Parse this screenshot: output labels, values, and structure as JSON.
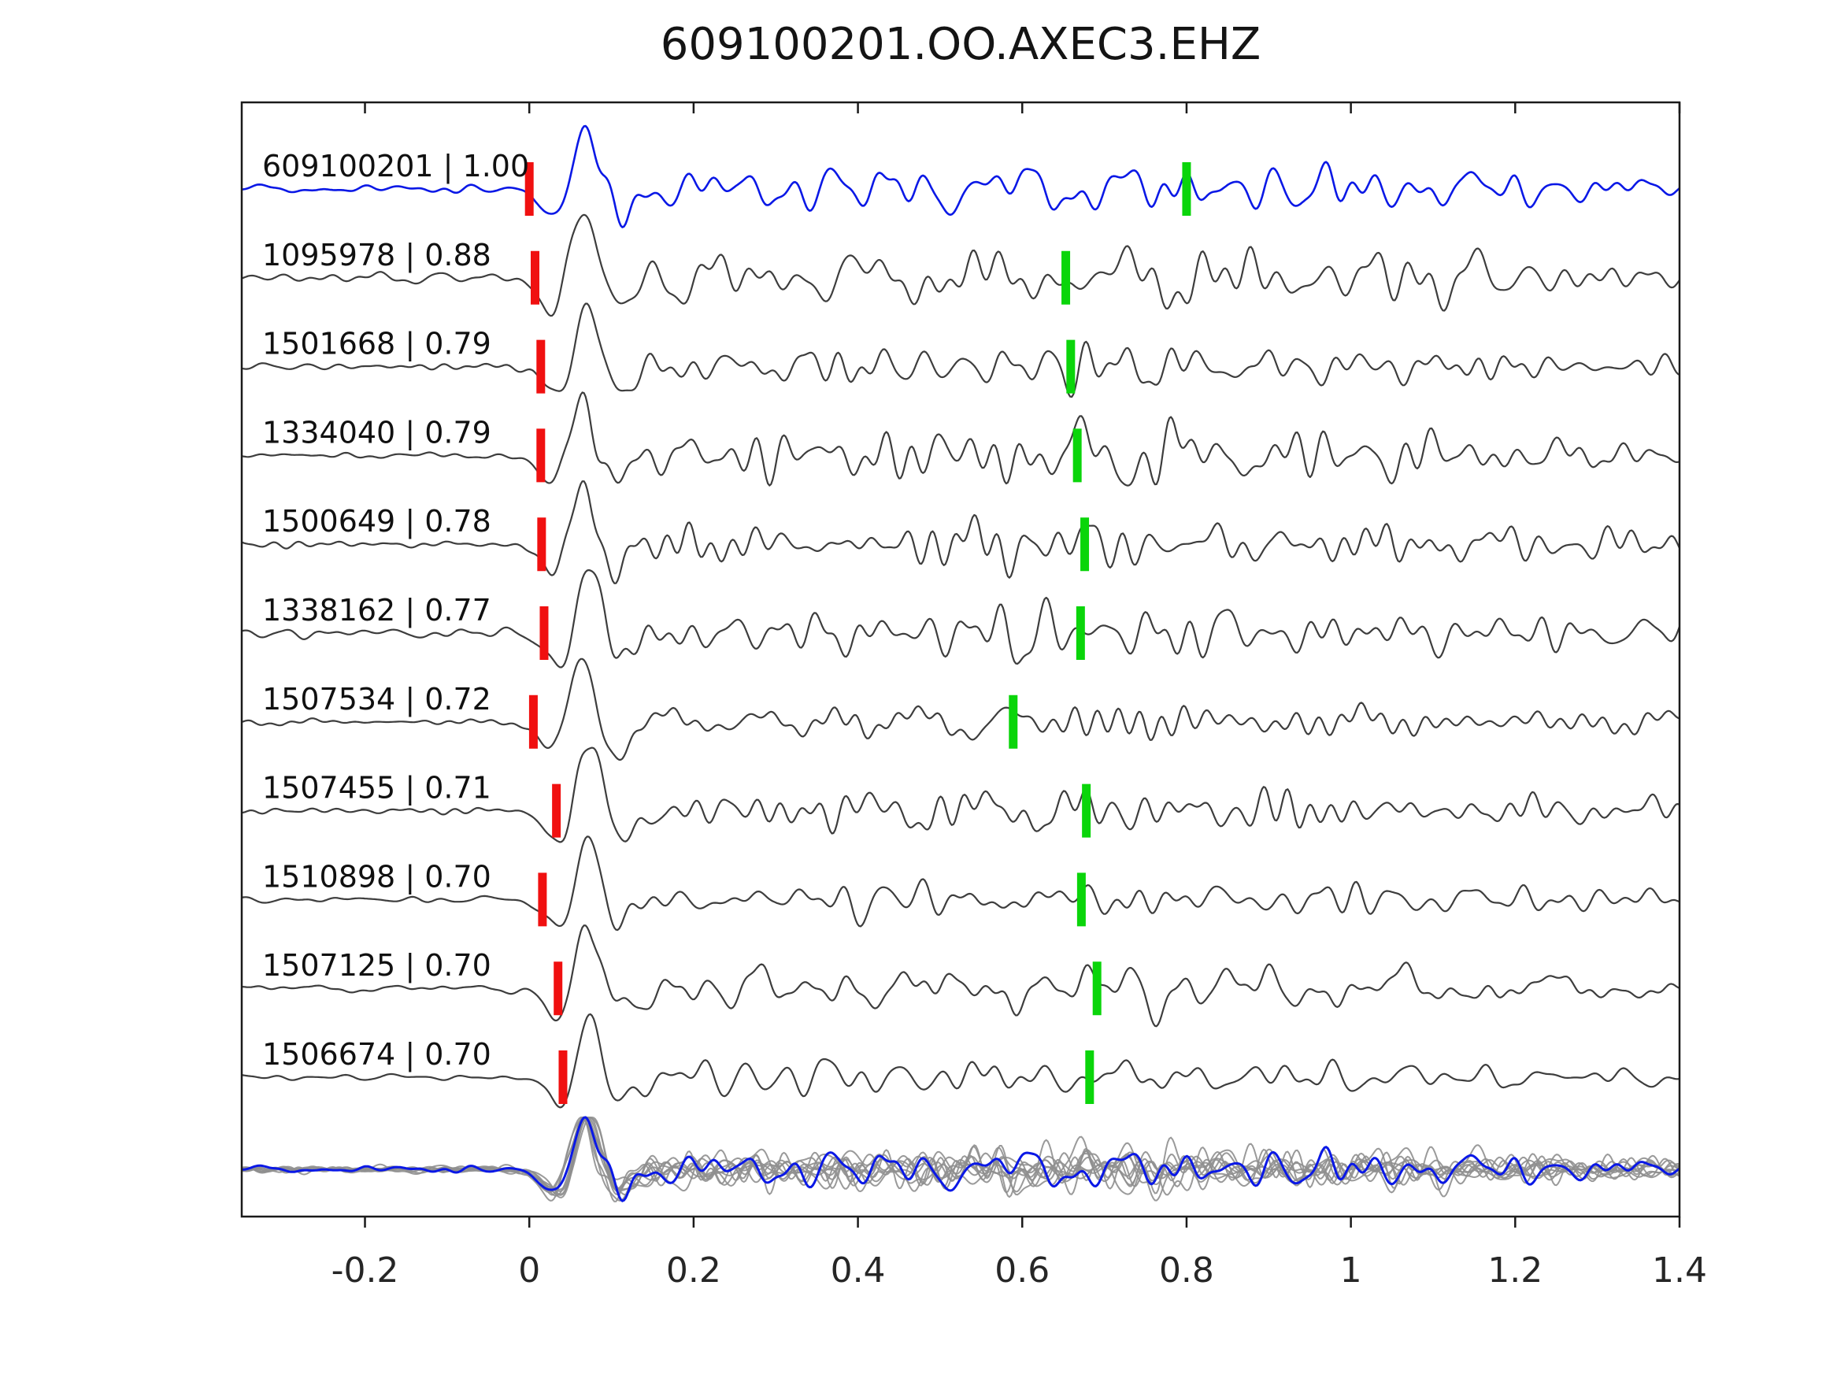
{
  "title": "609100201.OO.AXEC3.EHZ",
  "chart_data": {
    "type": "line",
    "description": "Template-matching seismic waveform comparison plot. Eleven aligned waveform traces (template on top in blue, matched detections in dark gray below) each labeled with event id and correlation coefficient. Red vertical markers show alignment picks near t=0, green vertical markers show secondary picks near t=0.6-0.8. Bottom row overlays all traces in gray with the blue template on top.",
    "xlim": [
      -0.35,
      1.4
    ],
    "x_ticks": [
      -0.2,
      0,
      0.2,
      0.4,
      0.6,
      0.8,
      1,
      1.2,
      1.4
    ],
    "x_tick_labels": [
      "-0.2",
      "0",
      "0.2",
      "0.4",
      "0.6",
      "0.8",
      "1",
      "1.2",
      "1.4"
    ],
    "grid": false,
    "legend": "none",
    "traces": [
      {
        "label": "609100201 | 1.00",
        "id": "609100201",
        "correlation": 1.0,
        "pick_red": 0.0,
        "pick_green": 0.8,
        "is_template": true,
        "relative_coda_amplitude": 1.0
      },
      {
        "label": "1095978 | 0.88",
        "id": "1095978",
        "correlation": 0.88,
        "pick_red": 0.007,
        "pick_green": 0.653,
        "is_template": false,
        "relative_coda_amplitude": 1.0
      },
      {
        "label": "1501668 | 0.79",
        "id": "1501668",
        "correlation": 0.79,
        "pick_red": 0.014,
        "pick_green": 0.659,
        "is_template": false,
        "relative_coda_amplitude": 0.95
      },
      {
        "label": "1334040 | 0.79",
        "id": "1334040",
        "correlation": 0.79,
        "pick_red": 0.014,
        "pick_green": 0.667,
        "is_template": false,
        "relative_coda_amplitude": 1.45
      },
      {
        "label": "1500649 | 0.78",
        "id": "1500649",
        "correlation": 0.78,
        "pick_red": 0.015,
        "pick_green": 0.676,
        "is_template": false,
        "relative_coda_amplitude": 1.05
      },
      {
        "label": "1338162 | 0.77",
        "id": "1338162",
        "correlation": 0.77,
        "pick_red": 0.018,
        "pick_green": 0.671,
        "is_template": false,
        "relative_coda_amplitude": 1.35
      },
      {
        "label": "1507534 | 0.72",
        "id": "1507534",
        "correlation": 0.72,
        "pick_red": 0.005,
        "pick_green": 0.589,
        "is_template": false,
        "relative_coda_amplitude": 0.85
      },
      {
        "label": "1507455 | 0.71",
        "id": "1507455",
        "correlation": 0.71,
        "pick_red": 0.033,
        "pick_green": 0.678,
        "is_template": false,
        "relative_coda_amplitude": 0.95
      },
      {
        "label": "1510898 | 0.70",
        "id": "1510898",
        "correlation": 0.7,
        "pick_red": 0.016,
        "pick_green": 0.672,
        "is_template": false,
        "relative_coda_amplitude": 0.9
      },
      {
        "label": "1507125 | 0.70",
        "id": "1507125",
        "correlation": 0.7,
        "pick_red": 0.035,
        "pick_green": 0.691,
        "is_template": false,
        "relative_coda_amplitude": 1.0
      },
      {
        "label": "1506674 | 0.70",
        "id": "1506674",
        "correlation": 0.7,
        "pick_red": 0.041,
        "pick_green": 0.682,
        "is_template": false,
        "relative_coda_amplitude": 0.9
      }
    ],
    "overlay_row": {
      "content": "all traces overlaid",
      "gray_color": "#8f8f8f",
      "template_color": "#0a18e6"
    },
    "colors": {
      "template": "#0a18e6",
      "trace": "#3d3d3d",
      "pick_red": "#f01010",
      "pick_green": "#0ad50a",
      "axis": "#1a1a1a",
      "tick_label": "#262626",
      "label_text": "#101010"
    }
  }
}
